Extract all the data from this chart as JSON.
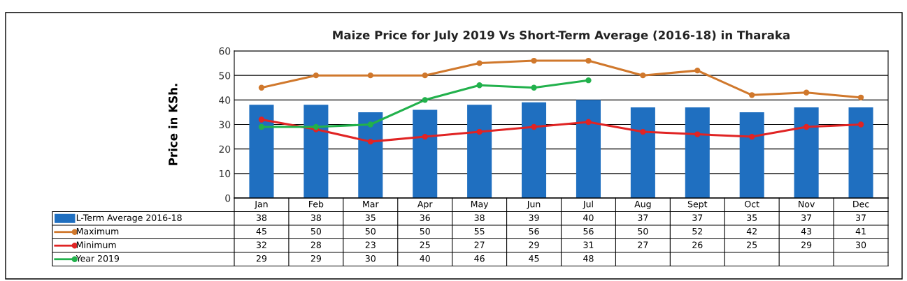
{
  "chart_data": {
    "type": "bar",
    "title": "Maize Price for July 2019 Vs Short-Term Average (2016-18) in Tharaka",
    "ylabel": "Price in KSh.",
    "categories": [
      "Jan",
      "Feb",
      "Mar",
      "Apr",
      "May",
      "Jun",
      "Jul",
      "Aug",
      "Sept",
      "Oct",
      "Nov",
      "Dec"
    ],
    "series": [
      {
        "name": "L-Term Average 2016-18",
        "color": "#1f6fc0",
        "values": [
          38,
          38,
          35,
          36,
          38,
          39,
          40,
          37,
          37,
          35,
          37,
          37
        ]
      },
      {
        "name": "Maximum",
        "type": "line",
        "color": "#d0782c",
        "values": [
          45,
          50,
          50,
          50,
          55,
          56,
          56,
          50,
          52,
          42,
          43,
          41
        ]
      },
      {
        "name": "Minimum",
        "type": "line",
        "color": "#e02424",
        "values": [
          32,
          28,
          23,
          25,
          27,
          29,
          31,
          27,
          26,
          25,
          29,
          30
        ]
      },
      {
        "name": "Year 2019",
        "type": "line",
        "color": "#22b14c",
        "values": [
          29,
          29,
          30,
          40,
          46,
          45,
          48,
          null,
          null,
          null,
          null,
          null
        ]
      }
    ],
    "ylim": [
      0,
      60
    ],
    "yticks": [
      0,
      10,
      20,
      30,
      40,
      50,
      60
    ],
    "grid": "y",
    "marker": "circle",
    "data_labels": true,
    "legend": "bottom"
  }
}
